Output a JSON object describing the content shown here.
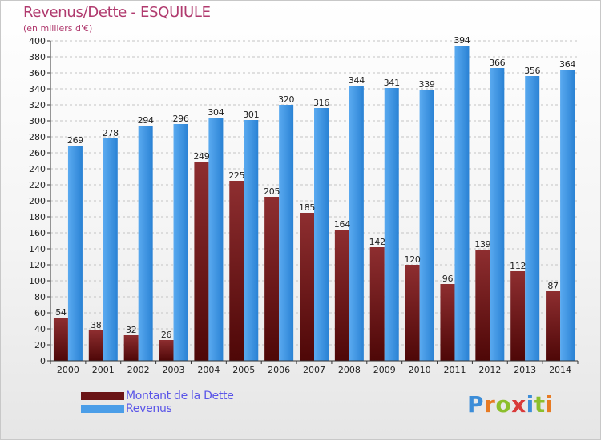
{
  "title": "Revenus/Dette - ESQUIULE",
  "subtitle": "(en milliers d'€)",
  "colors": {
    "debt_top": "#8e2e30",
    "debt_bottom": "#4e0707",
    "revenue_top": "#5aaaf0",
    "revenue_bottom": "#2a82d4",
    "axis": "#333333",
    "grid": "#c4c4c4"
  },
  "legend": [
    {
      "label": "Montant de la Dette",
      "color": "#6a1416"
    },
    {
      "label": "Revenus",
      "color": "#4b9ee8"
    }
  ],
  "logo": {
    "text": "Proxiti",
    "letter_colors": [
      "#3c8dd8",
      "#e77a22",
      "#8cbf2c",
      "#d93a3a",
      "#3c8dd8",
      "#8cbf2c",
      "#e77a22"
    ]
  },
  "chart_data": {
    "type": "bar",
    "categories": [
      "2000",
      "2001",
      "2002",
      "2003",
      "2004",
      "2005",
      "2006",
      "2007",
      "2008",
      "2009",
      "2010",
      "2011",
      "2012",
      "2013",
      "2014"
    ],
    "series": [
      {
        "name": "Montant de la Dette",
        "values": [
          54,
          38,
          32,
          26,
          249,
          225,
          205,
          185,
          164,
          142,
          120,
          96,
          139,
          112,
          87
        ]
      },
      {
        "name": "Revenus",
        "values": [
          269,
          278,
          294,
          296,
          304,
          301,
          320,
          316,
          344,
          341,
          339,
          394,
          366,
          356,
          364
        ]
      }
    ],
    "ylim": [
      0,
      400
    ],
    "yticks": [
      0,
      20,
      40,
      60,
      80,
      100,
      120,
      140,
      160,
      180,
      200,
      220,
      240,
      260,
      280,
      300,
      320,
      340,
      360,
      380,
      400
    ],
    "grid": true,
    "legend_position": "bottom-left"
  }
}
